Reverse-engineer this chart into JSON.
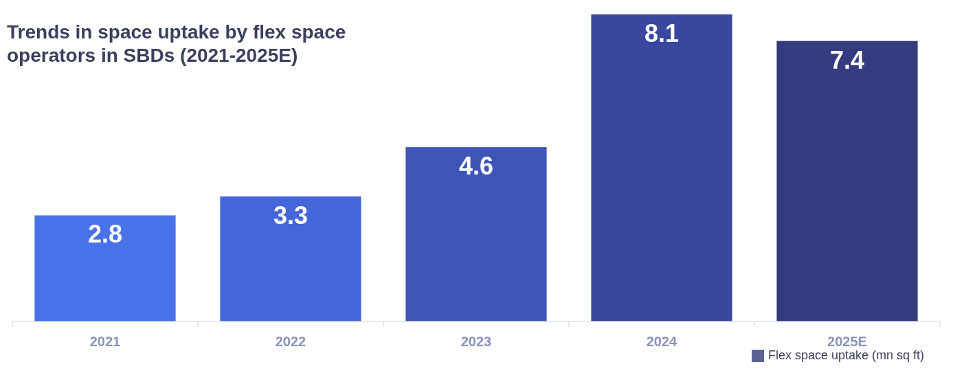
{
  "chart_data": {
    "type": "bar",
    "title": "Trends in space uptake by flex space operators in SBDs (2021-2025E)",
    "categories": [
      "2021",
      "2022",
      "2023",
      "2024",
      "2025E"
    ],
    "series": [
      {
        "name": "Flex space uptake (mn sq ft)",
        "color": "#5b6396",
        "colors": [
          "#4a72e8",
          "#4466d8",
          "#3e55b8",
          "#39489e",
          "#343b7e"
        ],
        "values": [
          2.8,
          3.3,
          4.6,
          8.1,
          7.4
        ]
      }
    ],
    "data_labels": true,
    "legend": "bottom right",
    "grid": false
  }
}
